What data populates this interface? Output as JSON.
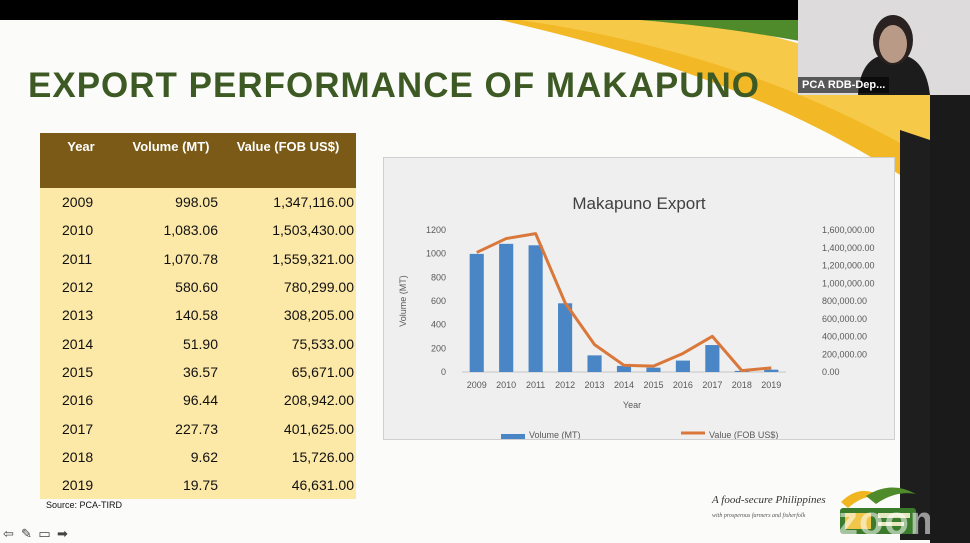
{
  "slide": {
    "title": "EXPORT PERFORMANCE OF MAKAPUNO",
    "source": "Source: PCA-TIRD",
    "footer_tagline": "A food-secure Philippines",
    "footer_subtitle": "with prosperous farmers and fisherfolk"
  },
  "table": {
    "headers": [
      "Year",
      "Volume (MT)",
      "Value (FOB US$)"
    ],
    "rows": [
      {
        "year": "2009",
        "volume": "998.05",
        "value": "1,347,116.00"
      },
      {
        "year": "2010",
        "volume": "1,083.06",
        "value": "1,503,430.00"
      },
      {
        "year": "2011",
        "volume": "1,070.78",
        "value": "1,559,321.00"
      },
      {
        "year": "2012",
        "volume": "580.60",
        "value": "780,299.00"
      },
      {
        "year": "2013",
        "volume": "140.58",
        "value": "308,205.00"
      },
      {
        "year": "2014",
        "volume": "51.90",
        "value": "75,533.00"
      },
      {
        "year": "2015",
        "volume": "36.57",
        "value": "65,671.00"
      },
      {
        "year": "2016",
        "volume": "96.44",
        "value": "208,942.00"
      },
      {
        "year": "2017",
        "volume": "227.73",
        "value": "401,625.00"
      },
      {
        "year": "2018",
        "volume": "9.62",
        "value": "15,726.00"
      },
      {
        "year": "2019",
        "volume": "19.75",
        "value": "46,631.00"
      }
    ]
  },
  "video": {
    "participant_name": "PCA RDB-Dep..."
  },
  "watermark": "zoom",
  "colors": {
    "title": "#3d5a24",
    "table_header": "#7a5a16",
    "table_body": "#fce8a7",
    "bar": "#4a86c6",
    "line": "#d9783a"
  },
  "chart_data": {
    "type": "bar",
    "title": "Makapuno Export",
    "xlabel": "Year",
    "ylabel": "Volume (MT)",
    "categories": [
      "2009",
      "2010",
      "2011",
      "2012",
      "2013",
      "2014",
      "2015",
      "2016",
      "2017",
      "2018",
      "2019"
    ],
    "ylim": [
      0,
      1200
    ],
    "yticks": [
      "0",
      "200",
      "400",
      "600",
      "800",
      "1000",
      "1200"
    ],
    "y2lim": [
      0,
      1600000
    ],
    "y2ticks": [
      "0.00",
      "200,000.00",
      "400,000.00",
      "600,000.00",
      "800,000.00",
      "1,000,000.00",
      "1,200,000.00",
      "1,400,000.00",
      "1,600,000.00"
    ],
    "series": [
      {
        "name": "Volume (MT)",
        "type": "bar",
        "axis": "left",
        "values": [
          998.05,
          1083.06,
          1070.78,
          580.6,
          140.58,
          51.9,
          36.57,
          96.44,
          227.73,
          9.62,
          19.75
        ]
      },
      {
        "name": "Value (FOB US$)",
        "type": "line",
        "axis": "right",
        "values": [
          1347116,
          1503430,
          1559321,
          780299,
          308205,
          75533,
          65671,
          208942,
          401625,
          15726,
          46631
        ]
      }
    ],
    "legend": "bottom",
    "grid": false
  }
}
